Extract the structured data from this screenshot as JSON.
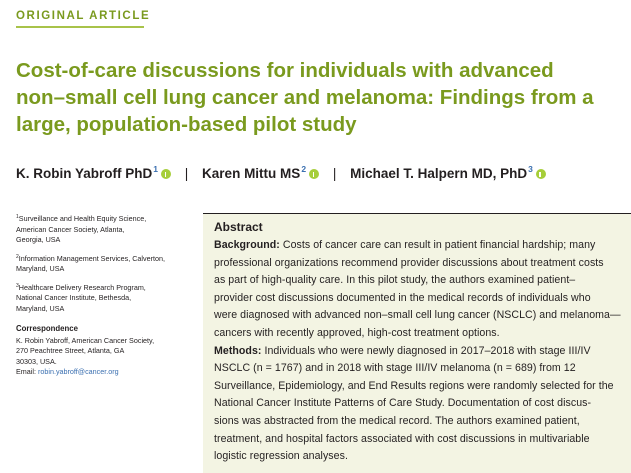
{
  "article_type": "ORIGINAL ARTICLE",
  "title_lines": [
    "Cost-of-care discussions for individuals with advanced",
    "non–small cell lung cancer and melanoma: Findings from a",
    "large, population-based pilot study"
  ],
  "authors": [
    {
      "name": "K. Robin Yabroff PhD",
      "sup": "1"
    },
    {
      "name": "Karen Mittu MS",
      "sup": "2"
    },
    {
      "name": "Michael T. Halpern MD, PhD",
      "sup": "3"
    }
  ],
  "author_separator": "|",
  "affiliations": [
    {
      "sup": "1",
      "lines": [
        "Surveillance and Health Equity Science,",
        "American Cancer Society, Atlanta,",
        "Georgia, USA"
      ]
    },
    {
      "sup": "2",
      "lines": [
        "Information Management Services, Calverton,",
        "Maryland, USA"
      ]
    },
    {
      "sup": "3",
      "lines": [
        "Healthcare Delivery Research Program,",
        "National Cancer Institute, Bethesda,",
        "Maryland, USA"
      ]
    }
  ],
  "correspondence": {
    "heading": "Correspondence",
    "lines": [
      "K. Robin Yabroff, American Cancer Society,",
      "270 Peachtree Street, Atlanta, GA",
      "30303, USA."
    ],
    "email_label": "Email: ",
    "email": "robin.yabroff@cancer.org"
  },
  "abstract": {
    "heading": "Abstract",
    "background_label": "Background:",
    "background_lines": [
      " Costs of cancer care can result in patient financial hardship; many",
      "professional organizations recommend provider discussions about treatment costs",
      "as part of high-quality care. In this pilot study, the authors examined patient–",
      "provider cost discussions documented in the medical records of individuals who",
      "were diagnosed with advanced non–small cell lung cancer (NSCLC) and melanoma—",
      "cancers with recently approved, high-cost treatment options."
    ],
    "methods_label": "Methods:",
    "methods_lines": [
      " Individuals who were newly diagnosed in 2017–2018 with stage III/IV",
      "NSCLC (n = 1767) and in 2018 with stage III/IV melanoma (n = 689) from 12",
      "Surveillance, Epidemiology, and End Results regions were randomly selected for the",
      "National Cancer Institute Patterns of Care Study. Documentation of cost discus-",
      "sions was abstracted from the medical record. The authors examined patient,",
      "treatment, and hospital factors associated with cost discussions in multivariable",
      "logistic regression analyses."
    ]
  },
  "colors": {
    "accent_green": "#7a9a1e",
    "rule_green": "#a8c34a",
    "abstract_bg": "#f3f4e3",
    "superscript_blue": "#3a6fb0",
    "orcid_green": "#a6ce39"
  },
  "icons": [
    "orcid-icon"
  ]
}
